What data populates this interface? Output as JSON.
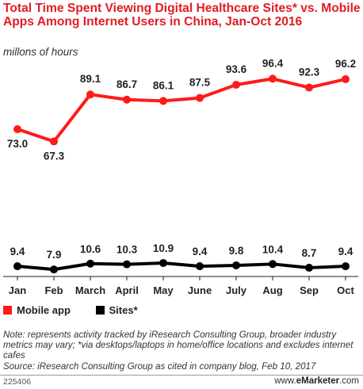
{
  "title": "Total Time Spent Viewing Digital Healthcare Sites* vs. Mobile Apps Among Internet Users in China, Jan-Oct 2016",
  "subtitle": "millons of hours",
  "legend": {
    "mobile_app": "Mobile app",
    "sites": "Sites*"
  },
  "note": "Note: represents activity tracked by iResearch Consulting Group, broader industry metrics may vary; *via desktops/laptops in home/office locations and excludes internet cafes",
  "source": "Source: iResearch Consulting Group as cited in company blog, Feb 10, 2017",
  "footer": {
    "id": "225406",
    "brand_prefix": "www.",
    "brand_name": "eMarketer",
    "brand_suffix": ".com"
  },
  "colors": {
    "title": "#e31b23",
    "mobile_app": "#ff1a1a",
    "sites": "#000000"
  },
  "chart_data": {
    "type": "line",
    "title": "Total Time Spent Viewing Digital Healthcare Sites* vs. Mobile Apps Among Internet Users in China, Jan-Oct 2016",
    "subtitle": "millons of hours",
    "categories": [
      "Jan",
      "Feb",
      "March",
      "April",
      "May",
      "June",
      "July",
      "Aug",
      "Sep",
      "Oct"
    ],
    "series": [
      {
        "name": "Mobile app",
        "color": "#ff1a1a",
        "values": [
          73.0,
          67.3,
          89.1,
          86.7,
          86.1,
          87.5,
          93.6,
          96.4,
          92.3,
          96.2
        ],
        "labels": [
          "73.0",
          "67.3",
          "89.1",
          "86.7",
          "86.1",
          "87.5",
          "93.6",
          "96.4",
          "92.3",
          "96.2"
        ]
      },
      {
        "name": "Sites*",
        "color": "#000000",
        "values": [
          9.4,
          7.9,
          10.6,
          10.3,
          10.9,
          9.4,
          9.8,
          10.4,
          8.7,
          9.4
        ],
        "labels": [
          "9.4",
          "7.9",
          "10.6",
          "10.3",
          "10.9",
          "9.4",
          "9.8",
          "10.4",
          "8.7",
          "9.4"
        ]
      }
    ],
    "grid": false,
    "legend_position": "bottom-left"
  }
}
